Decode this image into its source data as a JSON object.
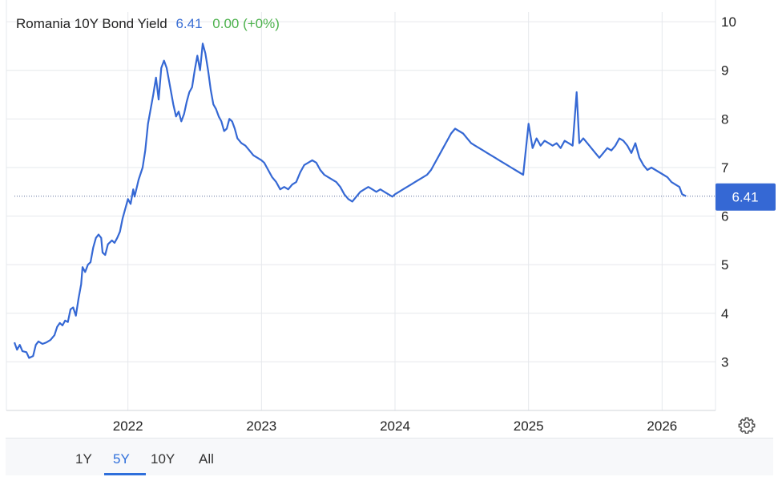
{
  "header": {
    "title": "Romania 10Y Bond Yield",
    "last": "6.41",
    "change": "0.00 (+0%)"
  },
  "range_buttons": [
    {
      "label": "1Y",
      "active": false
    },
    {
      "label": "5Y",
      "active": true
    },
    {
      "label": "10Y",
      "active": false
    },
    {
      "label": "All",
      "active": false
    }
  ],
  "icons": {
    "settings": "gear-icon"
  },
  "colors": {
    "line": "#3568d4",
    "badge": "#3568d4",
    "up": "#4cb14c"
  },
  "chart_data": {
    "type": "line",
    "title": "Romania 10Y Bond Yield",
    "xlabel": "",
    "ylabel": "",
    "x_ticks": [
      2022,
      2023,
      2024,
      2025,
      2026
    ],
    "y_ticks": [
      3,
      4,
      5,
      6,
      7,
      8,
      9,
      10
    ],
    "xlim": [
      2021.15,
      2026.4
    ],
    "ylim": [
      2,
      10.2
    ],
    "last_value_label": "6.41",
    "grid": true,
    "series": [
      {
        "name": "",
        "points": [
          [
            2021.15,
            3.4
          ],
          [
            2021.17,
            3.25
          ],
          [
            2021.19,
            3.35
          ],
          [
            2021.21,
            3.22
          ],
          [
            2021.24,
            3.2
          ],
          [
            2021.26,
            3.08
          ],
          [
            2021.29,
            3.12
          ],
          [
            2021.31,
            3.35
          ],
          [
            2021.33,
            3.42
          ],
          [
            2021.36,
            3.37
          ],
          [
            2021.39,
            3.4
          ],
          [
            2021.42,
            3.45
          ],
          [
            2021.45,
            3.55
          ],
          [
            2021.47,
            3.72
          ],
          [
            2021.49,
            3.8
          ],
          [
            2021.51,
            3.75
          ],
          [
            2021.53,
            3.85
          ],
          [
            2021.55,
            3.82
          ],
          [
            2021.57,
            4.08
          ],
          [
            2021.59,
            4.12
          ],
          [
            2021.61,
            3.95
          ],
          [
            2021.63,
            4.3
          ],
          [
            2021.65,
            4.6
          ],
          [
            2021.66,
            4.95
          ],
          [
            2021.68,
            4.85
          ],
          [
            2021.7,
            5.0
          ],
          [
            2021.72,
            5.05
          ],
          [
            2021.74,
            5.35
          ],
          [
            2021.76,
            5.55
          ],
          [
            2021.78,
            5.62
          ],
          [
            2021.8,
            5.55
          ],
          [
            2021.81,
            5.25
          ],
          [
            2021.83,
            5.2
          ],
          [
            2021.85,
            5.42
          ],
          [
            2021.88,
            5.5
          ],
          [
            2021.9,
            5.45
          ],
          [
            2021.92,
            5.55
          ],
          [
            2021.94,
            5.68
          ],
          [
            2021.96,
            5.95
          ],
          [
            2022.0,
            6.35
          ],
          [
            2022.02,
            6.25
          ],
          [
            2022.04,
            6.55
          ],
          [
            2022.05,
            6.4
          ],
          [
            2022.08,
            6.75
          ],
          [
            2022.11,
            7.0
          ],
          [
            2022.13,
            7.35
          ],
          [
            2022.15,
            7.9
          ],
          [
            2022.17,
            8.2
          ],
          [
            2022.19,
            8.5
          ],
          [
            2022.21,
            8.85
          ],
          [
            2022.23,
            8.4
          ],
          [
            2022.25,
            9.05
          ],
          [
            2022.27,
            9.2
          ],
          [
            2022.29,
            9.05
          ],
          [
            2022.32,
            8.6
          ],
          [
            2022.34,
            8.3
          ],
          [
            2022.36,
            8.05
          ],
          [
            2022.38,
            8.15
          ],
          [
            2022.4,
            7.95
          ],
          [
            2022.42,
            8.1
          ],
          [
            2022.44,
            8.35
          ],
          [
            2022.46,
            8.55
          ],
          [
            2022.48,
            8.65
          ],
          [
            2022.5,
            9.0
          ],
          [
            2022.52,
            9.3
          ],
          [
            2022.54,
            9.0
          ],
          [
            2022.56,
            9.55
          ],
          [
            2022.58,
            9.35
          ],
          [
            2022.6,
            9.0
          ],
          [
            2022.62,
            8.6
          ],
          [
            2022.64,
            8.3
          ],
          [
            2022.66,
            8.2
          ],
          [
            2022.68,
            8.05
          ],
          [
            2022.7,
            7.95
          ],
          [
            2022.72,
            7.75
          ],
          [
            2022.74,
            7.8
          ],
          [
            2022.76,
            8.0
          ],
          [
            2022.78,
            7.95
          ],
          [
            2022.8,
            7.8
          ],
          [
            2022.82,
            7.6
          ],
          [
            2022.85,
            7.5
          ],
          [
            2022.88,
            7.45
          ],
          [
            2022.91,
            7.35
          ],
          [
            2022.94,
            7.25
          ],
          [
            2022.97,
            7.2
          ],
          [
            2023.0,
            7.15
          ],
          [
            2023.02,
            7.1
          ],
          [
            2023.05,
            6.95
          ],
          [
            2023.08,
            6.8
          ],
          [
            2023.11,
            6.7
          ],
          [
            2023.14,
            6.55
          ],
          [
            2023.17,
            6.6
          ],
          [
            2023.2,
            6.55
          ],
          [
            2023.23,
            6.65
          ],
          [
            2023.26,
            6.7
          ],
          [
            2023.29,
            6.9
          ],
          [
            2023.32,
            7.05
          ],
          [
            2023.35,
            7.1
          ],
          [
            2023.38,
            7.15
          ],
          [
            2023.41,
            7.1
          ],
          [
            2023.44,
            6.95
          ],
          [
            2023.47,
            6.85
          ],
          [
            2023.5,
            6.8
          ],
          [
            2023.53,
            6.75
          ],
          [
            2023.56,
            6.7
          ],
          [
            2023.59,
            6.6
          ],
          [
            2023.62,
            6.45
          ],
          [
            2023.65,
            6.35
          ],
          [
            2023.68,
            6.3
          ],
          [
            2023.71,
            6.4
          ],
          [
            2023.74,
            6.5
          ],
          [
            2023.77,
            6.55
          ],
          [
            2023.8,
            6.6
          ],
          [
            2023.83,
            6.55
          ],
          [
            2023.86,
            6.5
          ],
          [
            2023.89,
            6.55
          ],
          [
            2023.92,
            6.5
          ],
          [
            2023.95,
            6.45
          ],
          [
            2023.98,
            6.4
          ],
          [
            2024.0,
            6.45
          ],
          [
            2024.03,
            6.5
          ],
          [
            2024.06,
            6.55
          ],
          [
            2024.09,
            6.6
          ],
          [
            2024.12,
            6.65
          ],
          [
            2024.15,
            6.7
          ],
          [
            2024.18,
            6.75
          ],
          [
            2024.21,
            6.8
          ],
          [
            2024.24,
            6.85
          ],
          [
            2024.27,
            6.95
          ],
          [
            2024.3,
            7.1
          ],
          [
            2024.33,
            7.25
          ],
          [
            2024.36,
            7.4
          ],
          [
            2024.39,
            7.55
          ],
          [
            2024.42,
            7.7
          ],
          [
            2024.45,
            7.8
          ],
          [
            2024.48,
            7.75
          ],
          [
            2024.51,
            7.7
          ],
          [
            2024.54,
            7.6
          ],
          [
            2024.57,
            7.5
          ],
          [
            2024.6,
            7.45
          ],
          [
            2024.63,
            7.4
          ],
          [
            2024.66,
            7.35
          ],
          [
            2024.69,
            7.3
          ],
          [
            2024.72,
            7.25
          ],
          [
            2024.75,
            7.2
          ],
          [
            2024.78,
            7.15
          ],
          [
            2024.81,
            7.1
          ],
          [
            2024.84,
            7.05
          ],
          [
            2024.87,
            7.0
          ],
          [
            2024.9,
            6.95
          ],
          [
            2024.93,
            6.9
          ],
          [
            2024.96,
            6.85
          ],
          [
            2025.0,
            7.9
          ],
          [
            2025.03,
            7.4
          ],
          [
            2025.06,
            7.6
          ],
          [
            2025.09,
            7.45
          ],
          [
            2025.12,
            7.55
          ],
          [
            2025.15,
            7.5
          ],
          [
            2025.18,
            7.45
          ],
          [
            2025.21,
            7.5
          ],
          [
            2025.24,
            7.4
          ],
          [
            2025.27,
            7.55
          ],
          [
            2025.3,
            7.5
          ],
          [
            2025.33,
            7.45
          ],
          [
            2025.36,
            8.55
          ],
          [
            2025.38,
            7.5
          ],
          [
            2025.41,
            7.6
          ],
          [
            2025.44,
            7.5
          ],
          [
            2025.47,
            7.4
          ],
          [
            2025.5,
            7.3
          ],
          [
            2025.53,
            7.2
          ],
          [
            2025.56,
            7.3
          ],
          [
            2025.59,
            7.4
          ],
          [
            2025.62,
            7.35
          ],
          [
            2025.65,
            7.45
          ],
          [
            2025.68,
            7.6
          ],
          [
            2025.71,
            7.55
          ],
          [
            2025.74,
            7.45
          ],
          [
            2025.77,
            7.3
          ],
          [
            2025.8,
            7.5
          ],
          [
            2025.83,
            7.2
          ],
          [
            2025.86,
            7.05
          ],
          [
            2025.89,
            6.95
          ],
          [
            2025.92,
            7.0
          ],
          [
            2025.95,
            6.95
          ],
          [
            2025.98,
            6.9
          ],
          [
            2026.01,
            6.85
          ],
          [
            2026.04,
            6.8
          ],
          [
            2026.07,
            6.7
          ],
          [
            2026.1,
            6.65
          ],
          [
            2026.13,
            6.6
          ],
          [
            2026.15,
            6.45
          ],
          [
            2026.18,
            6.41
          ]
        ]
      }
    ]
  }
}
